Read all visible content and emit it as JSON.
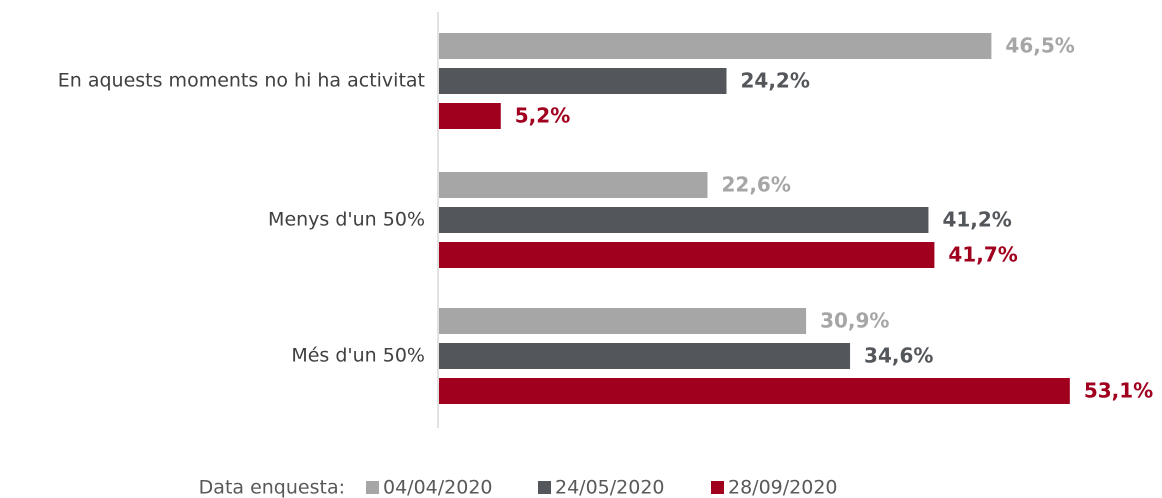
{
  "chart_data": {
    "type": "barh",
    "categories": [
      "En aquests moments no hi ha activitat",
      "Menys d'un 50%",
      "Més d'un 50%"
    ],
    "legend_title": "Data enquesta:",
    "series": [
      {
        "name": "04/04/2020",
        "color": "#a6a6a6",
        "values": [
          46.5,
          22.6,
          30.9
        ],
        "value_labels": [
          "46,5%",
          "22,6%",
          "30,9%"
        ]
      },
      {
        "name": "24/05/2020",
        "color": "#53565a",
        "values": [
          24.2,
          41.2,
          34.6
        ],
        "value_labels": [
          "24,2%",
          "41,2%",
          "34,6%"
        ]
      },
      {
        "name": "28/09/2020",
        "color": "#a0001e",
        "values": [
          5.2,
          41.7,
          53.1
        ],
        "value_labels": [
          "5,2%",
          "41,7%",
          "53,1%"
        ]
      }
    ]
  }
}
